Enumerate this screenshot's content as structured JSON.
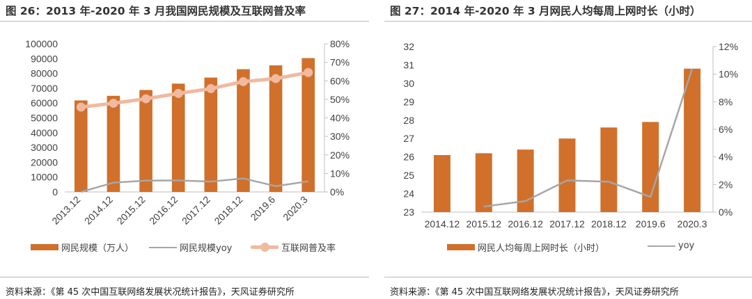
{
  "left": {
    "title": "图 26：2013 年-2020 年 3 月我国网民规模及互联网普及率",
    "source": "资料来源：《第 45 次中国互联网络发展状况统计报告》，天风证券研究所",
    "chart_data": {
      "type": "bar",
      "categories": [
        "2013.12",
        "2014.12",
        "2015.12",
        "2016.12",
        "2017.12",
        "2018.12",
        "2019.6",
        "2020.3"
      ],
      "y_left": {
        "min": 0,
        "max": 100000,
        "step": 10000,
        "ticks": [
          "0",
          "10000",
          "20000",
          "30000",
          "40000",
          "50000",
          "60000",
          "70000",
          "80000",
          "90000",
          "100000"
        ]
      },
      "y_right": {
        "min": 0,
        "max": 80,
        "step": 10,
        "ticks": [
          "0%",
          "10%",
          "20%",
          "30%",
          "40%",
          "50%",
          "60%",
          "70%",
          "80%"
        ]
      },
      "series": [
        {
          "name": "网民规模（万人）",
          "type": "bar",
          "axis": "left",
          "color": "#d0702b",
          "values": [
            61758,
            64875,
            68826,
            73125,
            77198,
            82851,
            85449,
            90359
          ]
        },
        {
          "name": "网民规模yoy",
          "type": "line",
          "axis": "right",
          "color": "#a6a6a6",
          "values": [
            0,
            5.0,
            6.1,
            6.2,
            5.6,
            7.3,
            3.1,
            5.7
          ]
        },
        {
          "name": "互联网普及率",
          "type": "line",
          "axis": "right",
          "color": "#f1b9a0",
          "marker": "circle",
          "values": [
            45.8,
            47.9,
            50.3,
            53.2,
            55.8,
            59.6,
            61.2,
            64.5
          ]
        }
      ],
      "grid": false,
      "legend": "bottom"
    }
  },
  "right": {
    "title": "图 27：2014 年-2020 年 3 月网民人均每周上网时长（小时）",
    "source": "资料来源：《第 45 次中国互联网络发展状况统计报告》，天风证券研究所",
    "chart_data": {
      "type": "bar",
      "categories": [
        "2014.12",
        "2015.12",
        "2016.12",
        "2017.12",
        "2018.12",
        "2019.6",
        "2020.3"
      ],
      "y_left": {
        "min": 23,
        "max": 32,
        "step": 1,
        "ticks": [
          "23",
          "24",
          "25",
          "26",
          "27",
          "28",
          "29",
          "30",
          "31",
          "32"
        ]
      },
      "y_right": {
        "min": 0,
        "max": 12,
        "step": 2,
        "ticks": [
          "0%",
          "2%",
          "4%",
          "6%",
          "8%",
          "10%",
          "12%"
        ]
      },
      "series": [
        {
          "name": "网民人均每周上网时长（小时）",
          "type": "bar",
          "axis": "left",
          "color": "#d0702b",
          "values": [
            26.1,
            26.2,
            26.4,
            27.0,
            27.6,
            27.9,
            30.8
          ]
        },
        {
          "name": "yoy",
          "type": "line",
          "axis": "right",
          "color": "#a6a6a6",
          "values": [
            null,
            0.4,
            0.8,
            2.3,
            2.2,
            1.1,
            10.4
          ]
        }
      ],
      "grid": false,
      "legend": "bottom"
    }
  }
}
